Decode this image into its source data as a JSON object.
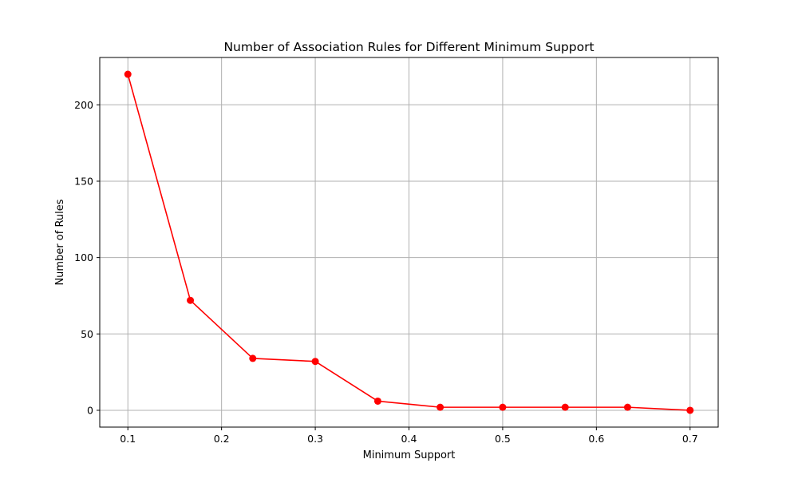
{
  "chart_data": {
    "type": "line",
    "title": "Number of Association Rules for Different Minimum Support",
    "xlabel": "Minimum Support",
    "ylabel": "Number of Rules",
    "xlim": [
      0.07,
      0.73
    ],
    "ylim": [
      -11,
      231
    ],
    "xticks": [
      0.1,
      0.2,
      0.3,
      0.4,
      0.5,
      0.6,
      0.7
    ],
    "xtick_labels": [
      "0.1",
      "0.2",
      "0.3",
      "0.4",
      "0.5",
      "0.6",
      "0.7"
    ],
    "yticks": [
      0,
      50,
      100,
      150,
      200
    ],
    "ytick_labels": [
      "0",
      "50",
      "100",
      "150",
      "200"
    ],
    "grid": true,
    "color": "#ff0000",
    "marker": "circle",
    "series": [
      {
        "x": [
          0.1,
          0.1667,
          0.2333,
          0.3,
          0.3667,
          0.4333,
          0.5,
          0.5667,
          0.6333,
          0.7
        ],
        "values": [
          220,
          72,
          34,
          32,
          6,
          2,
          2,
          2,
          2,
          0
        ]
      }
    ]
  }
}
